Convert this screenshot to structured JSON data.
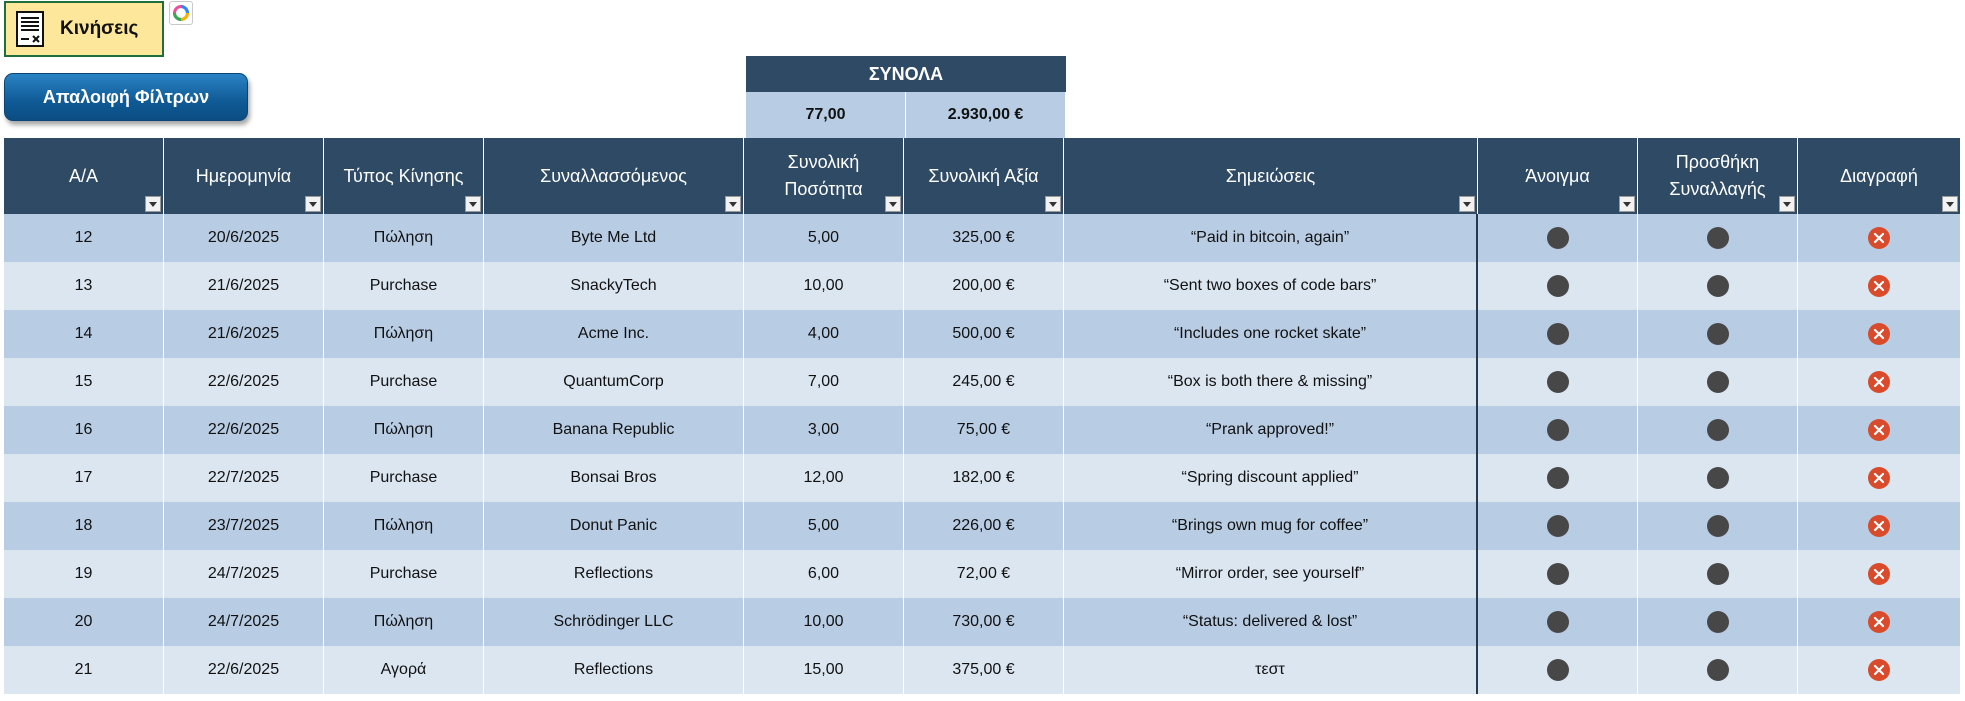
{
  "sheet_button": {
    "label": "Κινήσεις",
    "icon": "document-icon"
  },
  "copilot_icon": "copilot-icon",
  "clear_filters": {
    "label": "Απαλοιφή Φίλτρων"
  },
  "totals": {
    "title": "ΣΥΝΟΛΑ",
    "quantity": "77,00",
    "value": "2.930,00 €"
  },
  "colors": {
    "header_bg": "#2f4a64",
    "row_dark": "#b8cce4",
    "row_light": "#dce6f1",
    "title_bg": "#fde79a",
    "button_blue": "#0f5a96",
    "delete_red": "#d94b2a",
    "action_dot": "#474747"
  },
  "table": {
    "headers": [
      "Α/Α",
      "Ημερομηνία",
      "Τύπος Κίνησης",
      "Συναλλασσόμενος",
      "Συνολική Ποσότητα",
      "Συνολική Αξία",
      "Σημειώσεις",
      "Άνοιγμα",
      "Προσθήκη Συναλλαγής",
      "Διαγραφή"
    ],
    "rows": [
      {
        "id": "12",
        "date": "20/6/2025",
        "type": "Πώληση",
        "party": "Byte Me Ltd",
        "qty": "5,00",
        "value": "325,00 €",
        "notes": "“Paid in bitcoin, again”"
      },
      {
        "id": "13",
        "date": "21/6/2025",
        "type": "Purchase",
        "party": "SnackyTech",
        "qty": "10,00",
        "value": "200,00 €",
        "notes": "“Sent two boxes of code bars”"
      },
      {
        "id": "14",
        "date": "21/6/2025",
        "type": "Πώληση",
        "party": "Acme Inc.",
        "qty": "4,00",
        "value": "500,00 €",
        "notes": "“Includes one rocket skate”"
      },
      {
        "id": "15",
        "date": "22/6/2025",
        "type": "Purchase",
        "party": "QuantumCorp",
        "qty": "7,00",
        "value": "245,00 €",
        "notes": "“Box is both there & missing”"
      },
      {
        "id": "16",
        "date": "22/6/2025",
        "type": "Πώληση",
        "party": "Banana Republic",
        "qty": "3,00",
        "value": "75,00 €",
        "notes": "“Prank approved!”"
      },
      {
        "id": "17",
        "date": "22/7/2025",
        "type": "Purchase",
        "party": "Bonsai Bros",
        "qty": "12,00",
        "value": "182,00 €",
        "notes": "“Spring discount applied”"
      },
      {
        "id": "18",
        "date": "23/7/2025",
        "type": "Πώληση",
        "party": "Donut Panic",
        "qty": "5,00",
        "value": "226,00 €",
        "notes": "“Brings own mug for coffee”"
      },
      {
        "id": "19",
        "date": "24/7/2025",
        "type": "Purchase",
        "party": "Reflections",
        "qty": "6,00",
        "value": "72,00 €",
        "notes": "“Mirror order, see yourself”"
      },
      {
        "id": "20",
        "date": "24/7/2025",
        "type": "Πώληση",
        "party": "Schrödinger LLC",
        "qty": "10,00",
        "value": "730,00 €",
        "notes": "“Status: delivered & lost”"
      },
      {
        "id": "21",
        "date": "22/6/2025",
        "type": "Αγορά",
        "party": "Reflections",
        "qty": "15,00",
        "value": "375,00 €",
        "notes": "τεστ"
      }
    ]
  }
}
